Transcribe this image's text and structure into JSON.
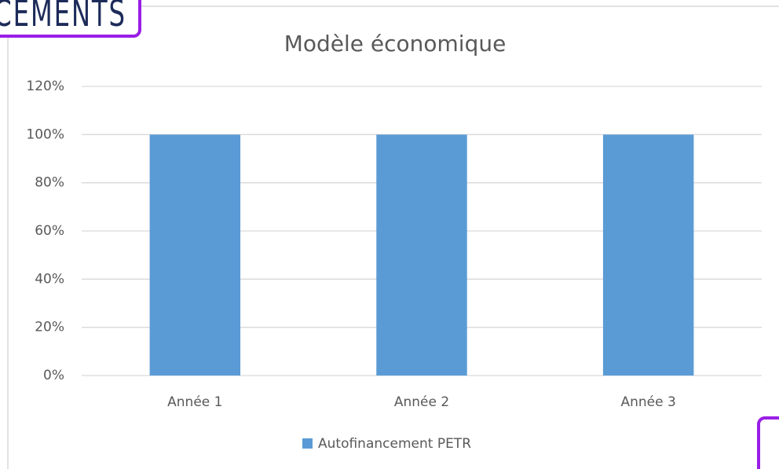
{
  "tag": "CEMENTS",
  "chart_data": {
    "type": "bar",
    "title": "Modèle économique",
    "categories": [
      "Année 1",
      "Année 2",
      "Année 3"
    ],
    "series": [
      {
        "name": "Autofinancement PETR",
        "color": "#5b9bd5",
        "values": [
          100,
          100,
          100
        ]
      }
    ],
    "ylim": [
      0,
      120
    ],
    "yticks": [
      {
        "value": 0,
        "label": "0%"
      },
      {
        "value": 20,
        "label": "20%"
      },
      {
        "value": 40,
        "label": "40%"
      },
      {
        "value": 60,
        "label": "60%"
      },
      {
        "value": 80,
        "label": "80%"
      },
      {
        "value": 100,
        "label": "100%"
      },
      {
        "value": 120,
        "label": "120%"
      }
    ],
    "grid": true,
    "legend": "bottom"
  }
}
